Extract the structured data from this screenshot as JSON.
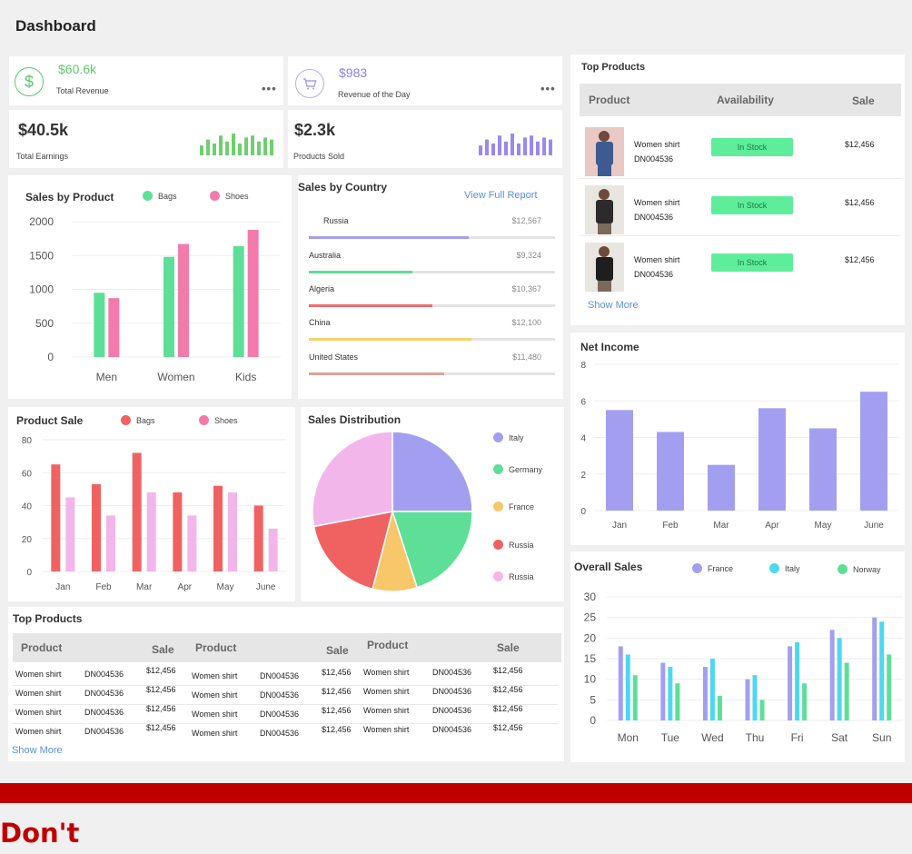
{
  "page": {
    "title": "Dashboard",
    "banner_text": "Don't"
  },
  "stats": {
    "total_revenue": {
      "value": "$60.6k",
      "label": "Total Revenue",
      "icon": "dollar-icon",
      "color": "#5cc96a"
    },
    "revenue_day": {
      "value": "$983",
      "label": "Revenue of the Day",
      "icon": "cart-icon",
      "color": "#8b7fe8"
    },
    "total_earnings": {
      "value": "$40.5k",
      "label": "Total Earnings",
      "spark": [
        5,
        8,
        6,
        10,
        7,
        11,
        6,
        9,
        10,
        7,
        9,
        8
      ],
      "color": "#6fcf6f"
    },
    "products_sold": {
      "value": "$2.3k",
      "label": "Products Sold",
      "spark": [
        5,
        8,
        6,
        10,
        7,
        11,
        6,
        9,
        10,
        7,
        9,
        8
      ],
      "color": "#9b87f0"
    },
    "more": "•••"
  },
  "sales_by_product": {
    "title": "Sales by Product",
    "chart_data": {
      "type": "bar",
      "categories": [
        "Men",
        "Women",
        "Kids"
      ],
      "series": [
        {
          "name": "Bags",
          "values": [
            950,
            1480,
            1640
          ],
          "color": "#5ddf97"
        },
        {
          "name": "Shoes",
          "values": [
            870,
            1670,
            1880
          ],
          "color": "#f27bab"
        }
      ],
      "yticks": [
        0,
        500,
        1000,
        1500,
        2000
      ],
      "ylim": [
        0,
        2000
      ]
    }
  },
  "sales_by_country": {
    "title": "Sales by Country",
    "link": "View Full Report",
    "rows": [
      {
        "name": "Russia",
        "value": "$12,567",
        "pct": 0.65,
        "color": "#a39ff0"
      },
      {
        "name": "Australia",
        "value": "$9,324",
        "pct": 0.42,
        "color": "#5ddf97"
      },
      {
        "name": "Algeria",
        "value": "$10,367",
        "pct": 0.5,
        "color": "#f06b6b"
      },
      {
        "name": "China",
        "value": "$12,100",
        "pct": 0.66,
        "color": "#f7d16a"
      },
      {
        "name": "United States",
        "value": "$11,480",
        "pct": 0.55,
        "color": "#e0a097"
      }
    ]
  },
  "top_products": {
    "title": "Top Products",
    "headers": {
      "product": "Product",
      "availability": "Availability",
      "sale": "Sale"
    },
    "rows": [
      {
        "name": "Women shirt",
        "code": "DN004536",
        "status": "In Stock",
        "sale": "$12,456"
      },
      {
        "name": "Women shirt",
        "code": "DN004536",
        "status": "In Stock",
        "sale": "$12,456"
      },
      {
        "name": "Women shirt",
        "code": "DN004536",
        "status": "In Stock",
        "sale": "$12,456"
      }
    ],
    "more": "Show More"
  },
  "net_income": {
    "title": "Net Income",
    "chart_data": {
      "type": "bar",
      "categories": [
        "Jan",
        "Feb",
        "Mar",
        "Apr",
        "May",
        "June"
      ],
      "values": [
        5.5,
        4.3,
        2.5,
        5.6,
        4.5,
        6.5
      ],
      "yticks": [
        0,
        2,
        4,
        6,
        8
      ],
      "ylim": [
        0,
        8
      ],
      "color": "#a39ff0"
    }
  },
  "product_sale": {
    "title": "Product Sale",
    "chart_data": {
      "type": "bar",
      "categories": [
        "Jan",
        "Feb",
        "Mar",
        "Apr",
        "May",
        "June"
      ],
      "series": [
        {
          "name": "Bags",
          "values": [
            65,
            53,
            72,
            48,
            52,
            40
          ],
          "color": "#f06262"
        },
        {
          "name": "Shoes",
          "values": [
            45,
            34,
            48,
            34,
            48,
            26
          ],
          "color": "#f2b6ea"
        }
      ],
      "yticks": [
        0,
        20,
        40,
        60,
        80
      ],
      "ylim": [
        0,
        80
      ]
    }
  },
  "sales_distribution": {
    "title": "Sales Distribution",
    "chart_data": {
      "type": "pie",
      "slices": [
        {
          "label": "Italy",
          "value": 25,
          "color": "#a39ff0"
        },
        {
          "label": "Germany",
          "value": 20,
          "color": "#5ddf97"
        },
        {
          "label": "France",
          "value": 9,
          "color": "#f7c76a"
        },
        {
          "label": "Russia",
          "value": 18,
          "color": "#f06262"
        },
        {
          "label": "Russia",
          "value": 28,
          "color": "#f2b6ea"
        }
      ]
    }
  },
  "overall_sales": {
    "title": "Overall Sales",
    "chart_data": {
      "type": "bar",
      "categories": [
        "Mon",
        "Tue",
        "Wed",
        "Thu",
        "Fri",
        "Sat",
        "Sun"
      ],
      "series": [
        {
          "name": "France",
          "values": [
            18,
            14,
            13,
            10,
            18,
            22,
            25
          ],
          "color": "#a39ff0"
        },
        {
          "name": "Italy",
          "values": [
            16,
            13,
            15,
            11,
            19,
            20,
            24
          ],
          "color": "#4dd8f2"
        },
        {
          "name": "Norway",
          "values": [
            11,
            9,
            6,
            5,
            9,
            14,
            16
          ],
          "color": "#5ddf97"
        }
      ],
      "yticks": [
        0,
        5,
        10,
        15,
        20,
        25,
        30
      ],
      "ylim": [
        0,
        30
      ]
    }
  },
  "bottom_table": {
    "title": "Top Products",
    "headers": [
      "Product",
      "Sale",
      "Product",
      "Sale",
      "Product",
      "Sale"
    ],
    "rows": [
      [
        "Women shirt",
        "DN004536",
        "$12,456",
        "Women shirt",
        "DN004536",
        "$12,456",
        "Women shirt",
        "DN004536",
        "$12,456"
      ],
      [
        "Women shirt",
        "DN004536",
        "$12,456",
        "Women shirt",
        "DN004536",
        "$12,456",
        "Women shirt",
        "DN004536",
        "$12,456"
      ],
      [
        "Women shirt",
        "DN004536",
        "$12,456",
        "Women shirt",
        "DN004536",
        "$12,456",
        "Women shirt",
        "DN004536",
        "$12,456"
      ],
      [
        "Women shirt",
        "DN004536",
        "$12,456",
        "Women shirt",
        "DN004536",
        "$12,456",
        "Women shirt",
        "DN004536",
        "$12,456"
      ]
    ],
    "more": "Show More"
  }
}
